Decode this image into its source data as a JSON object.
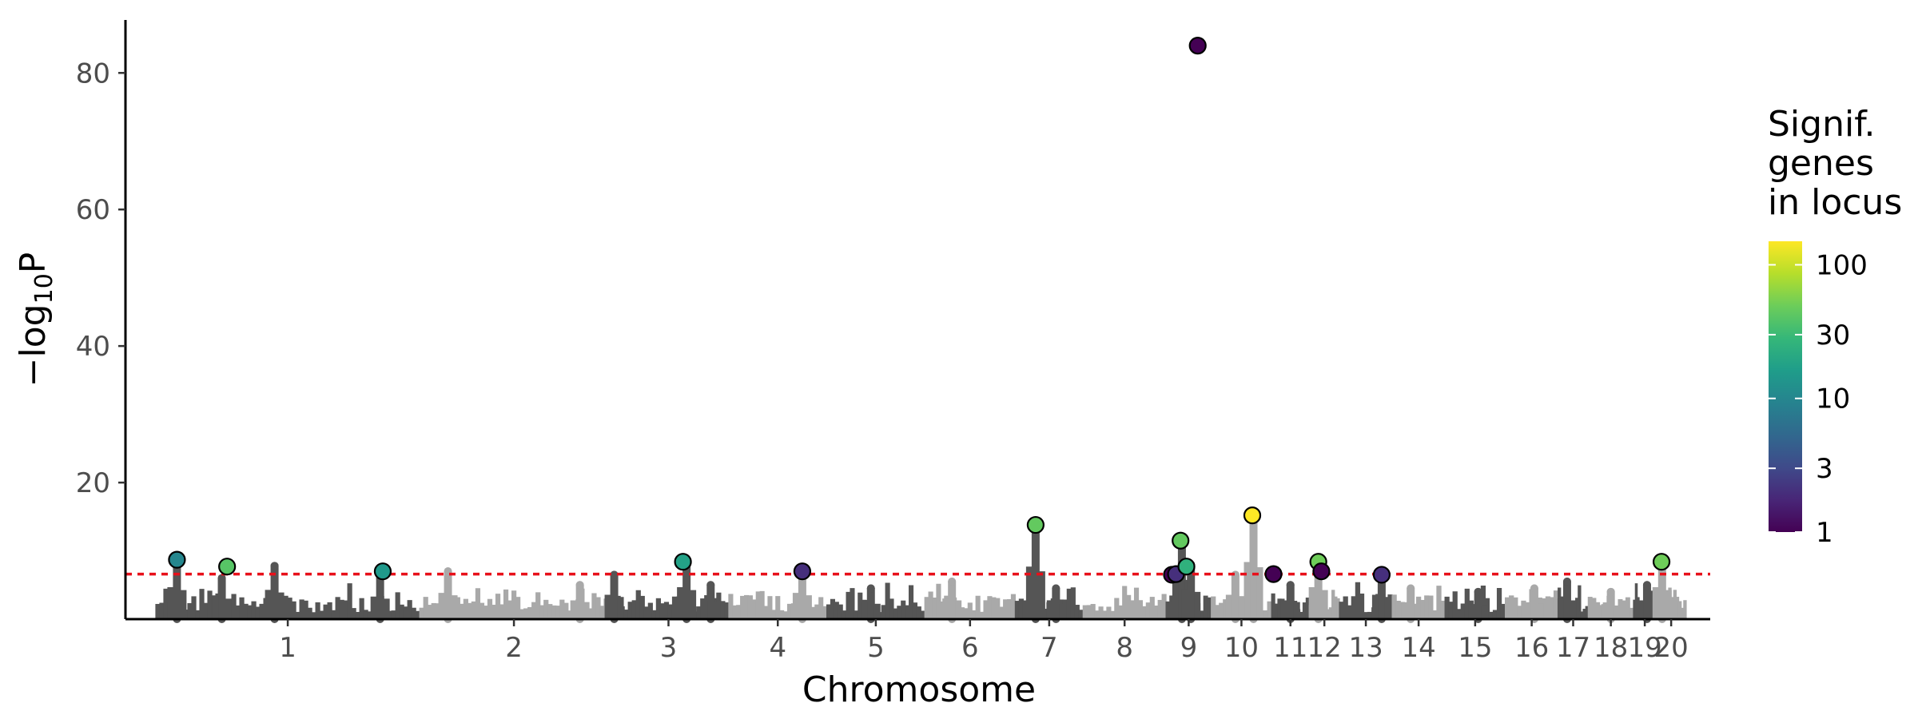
{
  "chart_data": {
    "type": "scatter",
    "title": "",
    "xlabel": "Chromosome",
    "ylabel_main": "−log",
    "ylabel_sub": "10",
    "ylabel_tail": "P",
    "ylim": [
      0,
      86
    ],
    "yticks": [
      20,
      40,
      60,
      80
    ],
    "grid": false,
    "chromosomes": [
      "1",
      "2",
      "3",
      "4",
      "5",
      "6",
      "7",
      "8",
      "9",
      "10",
      "11",
      "12",
      "13",
      "14",
      "15",
      "16",
      "17",
      "18",
      "19",
      "20"
    ],
    "chromosome_lengths": [
      35,
      25,
      16,
      13,
      13,
      12,
      9,
      11,
      6,
      8,
      5,
      4,
      7,
      7,
      8,
      7,
      4,
      6,
      3,
      4
    ],
    "chromosome_colors": [
      "#555555",
      "#a9a9a9"
    ],
    "significance_threshold": 6.6,
    "threshold_color": "#e8101a",
    "background_peaks": [
      {
        "chr": "1",
        "pos": 0.08,
        "y": 8.5
      },
      {
        "chr": "1",
        "pos": 0.25,
        "y": 6.0
      },
      {
        "chr": "1",
        "pos": 0.45,
        "y": 7.8
      },
      {
        "chr": "1",
        "pos": 0.85,
        "y": 6.0
      },
      {
        "chr": "2",
        "pos": 0.15,
        "y": 7.0
      },
      {
        "chr": "2",
        "pos": 0.85,
        "y": 5.0
      },
      {
        "chr": "3",
        "pos": 0.05,
        "y": 6.5
      },
      {
        "chr": "3",
        "pos": 0.65,
        "y": 8.5
      },
      {
        "chr": "3",
        "pos": 0.85,
        "y": 5.0
      },
      {
        "chr": "4",
        "pos": 0.75,
        "y": 7.0
      },
      {
        "chr": "5",
        "pos": 0.45,
        "y": 4.5
      },
      {
        "chr": "6",
        "pos": 0.3,
        "y": 5.5
      },
      {
        "chr": "7",
        "pos": 0.3,
        "y": 14.0
      },
      {
        "chr": "7",
        "pos": 0.6,
        "y": 4.5
      },
      {
        "chr": "9",
        "pos": 0.35,
        "y": 11.5
      },
      {
        "chr": "9",
        "pos": 0.55,
        "y": 8.0
      },
      {
        "chr": "10",
        "pos": 0.7,
        "y": 15.2
      },
      {
        "chr": "10",
        "pos": 0.4,
        "y": 6.5
      },
      {
        "chr": "11",
        "pos": 0.5,
        "y": 5.0
      },
      {
        "chr": "12",
        "pos": 0.3,
        "y": 8.5
      },
      {
        "chr": "13",
        "pos": 0.8,
        "y": 6.5
      },
      {
        "chr": "14",
        "pos": 0.35,
        "y": 4.5
      },
      {
        "chr": "15",
        "pos": 0.55,
        "y": 4.0
      },
      {
        "chr": "16",
        "pos": 0.55,
        "y": 4.5
      },
      {
        "chr": "17",
        "pos": 0.3,
        "y": 5.5
      },
      {
        "chr": "18",
        "pos": 0.5,
        "y": 4.0
      },
      {
        "chr": "19",
        "pos": 0.6,
        "y": 5.0
      },
      {
        "chr": "20",
        "pos": 0.2,
        "y": 8.5
      }
    ],
    "lead_snps": [
      {
        "chr": "1",
        "pos": 0.08,
        "y": 8.7,
        "genes": 10
      },
      {
        "chr": "1",
        "pos": 0.27,
        "y": 7.7,
        "genes": 40
      },
      {
        "chr": "1",
        "pos": 0.86,
        "y": 7.0,
        "genes": 15
      },
      {
        "chr": "3",
        "pos": 0.62,
        "y": 8.4,
        "genes": 18
      },
      {
        "chr": "4",
        "pos": 0.75,
        "y": 7.0,
        "genes": 2
      },
      {
        "chr": "7",
        "pos": 0.3,
        "y": 13.8,
        "genes": 45
      },
      {
        "chr": "9",
        "pos": 0.13,
        "y": 6.5,
        "genes": 1
      },
      {
        "chr": "9",
        "pos": 0.22,
        "y": 6.6,
        "genes": 2
      },
      {
        "chr": "9",
        "pos": 0.32,
        "y": 11.5,
        "genes": 45
      },
      {
        "chr": "9",
        "pos": 0.45,
        "y": 7.7,
        "genes": 25
      },
      {
        "chr": "9",
        "pos": 0.7,
        "y": 84.0,
        "genes": 1
      },
      {
        "chr": "10",
        "pos": 0.68,
        "y": 15.2,
        "genes": 150
      },
      {
        "chr": "11",
        "pos": 0.05,
        "y": 6.6,
        "genes": 1
      },
      {
        "chr": "12",
        "pos": 0.3,
        "y": 8.4,
        "genes": 50
      },
      {
        "chr": "12",
        "pos": 0.4,
        "y": 7.0,
        "genes": 1
      },
      {
        "chr": "13",
        "pos": 0.8,
        "y": 6.5,
        "genes": 2
      },
      {
        "chr": "20",
        "pos": 0.18,
        "y": 8.4,
        "genes": 50
      }
    ],
    "legend": {
      "title_lines": [
        "Signif.",
        "genes",
        "in locus"
      ],
      "scale": "log",
      "range": [
        1,
        150
      ],
      "ticks": [
        1,
        3,
        10,
        30,
        100
      ],
      "placement": "right",
      "palette": [
        "#440154",
        "#482677",
        "#3f4a8a",
        "#31688e",
        "#26838f",
        "#1f9d8a",
        "#35b779",
        "#6ccd5a",
        "#b6de2b",
        "#fde725"
      ]
    }
  }
}
